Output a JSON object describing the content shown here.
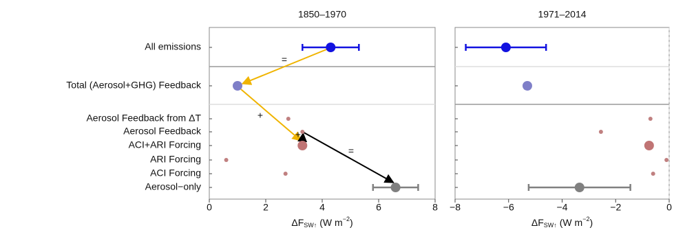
{
  "chart_data": [
    {
      "type": "dot",
      "title": "1850–1970",
      "categories": [
        "All emissions",
        "Total (Aerosol+GHG) Feedback",
        "Aerosol Feedback from ΔT",
        "Aerosol Feedback",
        "ACI+ARI Forcing",
        "ARI Forcing",
        "ACI Forcing",
        "Aerosol−only"
      ],
      "values": [
        4.3,
        1.0,
        2.8,
        3.3,
        3.3,
        0.6,
        2.7,
        6.6
      ],
      "errors": [
        1.0,
        null,
        null,
        null,
        null,
        null,
        null,
        0.8
      ],
      "colors": [
        "#1212e0",
        "#7f7fc8",
        "#c08080",
        "#c08080",
        "#c07474",
        "#c08080",
        "#c08080",
        "#808080"
      ],
      "markers": [
        "large",
        "large",
        "small",
        "small",
        "large",
        "small",
        "small",
        "large"
      ],
      "xlim": [
        0,
        8
      ],
      "xticks": [
        0,
        2,
        4,
        6,
        8
      ],
      "x_label": {
        "main": "ΔF",
        "sub": "SW↑",
        "unit": "(W m",
        "sup": "−2",
        "close": ")"
      },
      "annotations": [
        {
          "text": "=",
          "color": "#f0b400"
        },
        {
          "text": "+",
          "color": "#f0b400"
        },
        {
          "text": "+",
          "color": "#000000"
        },
        {
          "text": "=",
          "color": "#000000"
        }
      ]
    },
    {
      "type": "dot",
      "title": "1971–2014",
      "values": [
        -6.1,
        -5.3,
        -0.7,
        -2.55,
        -0.75,
        -0.1,
        -0.6,
        -3.35
      ],
      "errors": [
        1.5,
        null,
        null,
        null,
        null,
        null,
        null,
        1.9
      ],
      "colors": [
        "#1212e0",
        "#7f7fc8",
        "#c08080",
        "#c08080",
        "#c07474",
        "#c08080",
        "#c08080",
        "#808080"
      ],
      "markers": [
        "large",
        "large",
        "small",
        "small",
        "large",
        "small",
        "small",
        "large"
      ],
      "xlim": [
        -8,
        0
      ],
      "xticks": [
        {
          "value": -8,
          "label": "−8"
        },
        {
          "value": -6,
          "label": "−6"
        },
        {
          "value": -4,
          "label": "−4"
        },
        {
          "value": -2,
          "label": "−2"
        },
        {
          "value": 0,
          "label": "0"
        }
      ],
      "x_label": {
        "main": "ΔF",
        "sub": "SW↑",
        "unit": "(W m",
        "sup": "−2",
        "close": ")"
      }
    }
  ]
}
